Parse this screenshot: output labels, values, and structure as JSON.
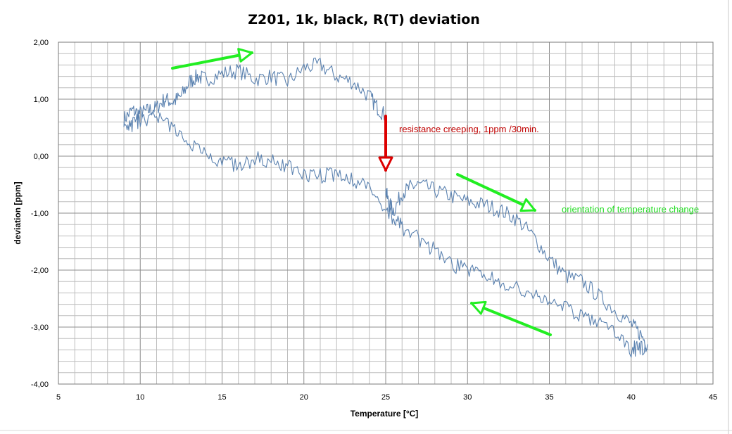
{
  "chart_data": {
    "type": "line",
    "title": "Z201, 1k, black, R(T) deviation",
    "xlabel": "Temperature [°C]",
    "ylabel": "deviation [ppm]",
    "xlim": [
      5,
      45
    ],
    "ylim": [
      -4,
      2
    ],
    "xticks": [
      "5",
      "10",
      "15",
      "20",
      "25",
      "30",
      "35",
      "40",
      "45"
    ],
    "yticks": [
      "2,00",
      "1,00",
      "0,00",
      "-1,00",
      "-2,00",
      "-3,00",
      "-4,00"
    ],
    "grid": true,
    "line_color": "#5b82b0",
    "series": [
      {
        "x": [
          9.0,
          9.5,
          10.0,
          10.5,
          11.0,
          11.5,
          12.0,
          12.5,
          13.0,
          13.5,
          14.0,
          15.0,
          16.0,
          17.0,
          18.0,
          19.0,
          20.0,
          21.0,
          22.0,
          23.0,
          24.0,
          24.5,
          25.0
        ],
        "y": [
          0.65,
          0.8,
          0.75,
          0.8,
          0.85,
          1.0,
          0.95,
          1.05,
          1.3,
          1.4,
          1.35,
          1.45,
          1.5,
          1.35,
          1.4,
          1.3,
          1.55,
          1.6,
          1.4,
          1.3,
          1.05,
          0.85,
          0.7
        ]
      },
      {
        "x": [
          25.0,
          25.2,
          25.5,
          26.0,
          26.5,
          27.0,
          28.0,
          29.0,
          30.0,
          31.0,
          32.0,
          33.0,
          34.0,
          35.0,
          36.0,
          37.0,
          38.0,
          39.0,
          40.0,
          40.5,
          41.0
        ],
        "y": [
          -0.6,
          -0.85,
          -0.95,
          -0.65,
          -0.55,
          -0.5,
          -0.6,
          -0.7,
          -0.8,
          -0.85,
          -0.95,
          -1.1,
          -1.4,
          -1.8,
          -2.1,
          -2.2,
          -2.45,
          -2.7,
          -2.95,
          -3.1,
          -3.3
        ]
      },
      {
        "x": [
          41.0,
          40.5,
          40.0,
          39.0,
          38.0,
          37.0,
          36.0,
          35.0,
          34.0,
          33.0,
          32.0,
          31.0,
          30.0,
          29.0,
          28.0,
          27.0,
          26.0,
          25.5,
          25.0,
          24.0,
          23.0,
          22.0,
          21.0,
          20.0,
          19.0,
          18.0,
          17.0,
          16.0,
          15.0,
          14.0,
          13.0,
          12.0,
          11.0,
          10.0,
          9.5,
          9.0
        ],
        "y": [
          -3.35,
          -3.35,
          -3.4,
          -3.1,
          -2.95,
          -2.8,
          -2.65,
          -2.55,
          -2.45,
          -2.3,
          -2.2,
          -2.05,
          -2.0,
          -1.9,
          -1.65,
          -1.45,
          -1.25,
          -1.1,
          -0.9,
          -0.6,
          -0.4,
          -0.3,
          -0.35,
          -0.3,
          -0.2,
          -0.1,
          -0.05,
          -0.15,
          -0.1,
          0.1,
          0.2,
          0.45,
          0.7,
          0.65,
          0.55,
          0.6
        ]
      }
    ],
    "annotations": {
      "creep_label": "resistance creeping, 1ppm /30min.",
      "orientation_label": "orientation of temperature change"
    }
  }
}
